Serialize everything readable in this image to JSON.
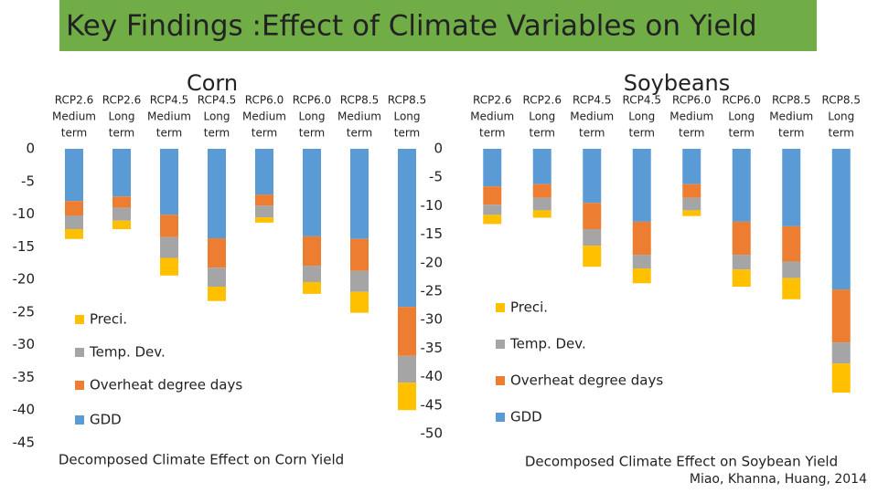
{
  "slide": {
    "title": "Key Findings :Effect of Climate Variables on Yield",
    "source": "Miao, Khanna, Huang, 2014"
  },
  "chart_data": [
    {
      "type": "bar",
      "stacked": true,
      "title": "Corn",
      "xlabel": "Decomposed Climate Effect on Corn Yield",
      "categories": [
        [
          "RCP2.6",
          "Medium",
          "term"
        ],
        [
          "RCP2.6",
          "Long",
          "term"
        ],
        [
          "RCP4.5",
          "Medium",
          "term"
        ],
        [
          "RCP4.5",
          "Long",
          "term"
        ],
        [
          "RCP6.0",
          "Medium",
          "term"
        ],
        [
          "RCP6.0",
          "Long",
          "term"
        ],
        [
          "RCP8.5",
          "Medium",
          "term"
        ],
        [
          "RCP8.5",
          "Long",
          "term"
        ]
      ],
      "series": [
        {
          "name": "GDD",
          "color": "#5b9bd5",
          "values": [
            -8.0,
            -7.3,
            -10.1,
            -13.7,
            -7.0,
            -13.4,
            -13.8,
            -24.2
          ]
        },
        {
          "name": "Overheat  degree days",
          "color": "#ed7d31",
          "values": [
            -2.2,
            -1.7,
            -3.4,
            -4.5,
            -1.7,
            -4.5,
            -4.9,
            -7.5
          ]
        },
        {
          "name": "Temp. Dev.",
          "color": "#a5a5a5",
          "values": [
            -2.1,
            -2.0,
            -3.2,
            -2.9,
            -1.8,
            -2.5,
            -3.2,
            -4.1
          ]
        },
        {
          "name": "Preci.",
          "color": "#ffc000",
          "values": [
            -1.5,
            -1.3,
            -2.7,
            -2.2,
            -0.8,
            -1.8,
            -3.2,
            -4.2
          ]
        }
      ],
      "ylim": [
        -45,
        0
      ],
      "yticks": [
        0,
        -5,
        -10,
        -15,
        -20,
        -25,
        -30,
        -35,
        -40,
        -45
      ]
    },
    {
      "type": "bar",
      "stacked": true,
      "title": "Soybeans",
      "xlabel": "Decomposed Climate Effect on Soybean Yield",
      "categories": [
        [
          "RCP2.6",
          "Medium",
          "term"
        ],
        [
          "RCP2.6",
          "Long",
          "term"
        ],
        [
          "RCP4.5",
          "Medium",
          "term"
        ],
        [
          "RCP4.5",
          "Long",
          "term"
        ],
        [
          "RCP6.0",
          "Medium",
          "term"
        ],
        [
          "RCP6.0",
          "Long",
          "term"
        ],
        [
          "RCP8.5",
          "Medium",
          "term"
        ],
        [
          "RCP8.5",
          "Long",
          "term"
        ]
      ],
      "series": [
        {
          "name": "GDD",
          "color": "#5b9bd5",
          "values": [
            -6.6,
            -6.2,
            -9.5,
            -12.8,
            -6.2,
            -12.8,
            -13.6,
            -24.7
          ]
        },
        {
          "name": "Overheat  degree days",
          "color": "#ed7d31",
          "values": [
            -3.2,
            -2.4,
            -4.6,
            -5.8,
            -2.4,
            -5.8,
            -6.2,
            -9.3
          ]
        },
        {
          "name": "Temp. Dev.",
          "color": "#a5a5a5",
          "values": [
            -1.8,
            -2.2,
            -2.9,
            -2.4,
            -2.2,
            -2.6,
            -2.9,
            -3.7
          ]
        },
        {
          "name": "Preci.",
          "color": "#ffc000",
          "values": [
            -1.6,
            -1.3,
            -3.7,
            -2.6,
            -1.0,
            -3.0,
            -3.7,
            -5.1
          ]
        }
      ],
      "ylim": [
        -50,
        0
      ],
      "yticks": [
        0,
        -5,
        -10,
        -15,
        -20,
        -25,
        -30,
        -35,
        -40,
        -45,
        -50
      ]
    }
  ]
}
